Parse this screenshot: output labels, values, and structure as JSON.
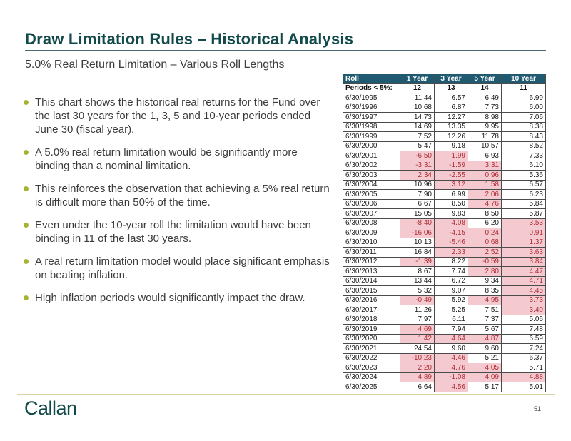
{
  "slide": {
    "title": "Draw Limitation Rules – Historical Analysis",
    "subtitle": "5.0% Real Return Limitation – Various Roll Lengths",
    "logo_text": "Callan",
    "page_number": "51"
  },
  "bullets": [
    "This chart shows the historical real returns for the Fund over the last 30 years for the 1, 3, 5 and 10-year periods ended June 30 (fiscal year).",
    "A 5.0% real return limitation would be significantly more binding than a nominal limitation.",
    "This reinforces the observation that achieving a 5% real return is difficult more than 50% of the time.",
    "Even under the 10-year roll the limitation would have been binding in 11 of the last 30 years.",
    "A real return limitation model would place significant emphasis on beating inflation.",
    "High inflation periods would significantly impact the draw."
  ],
  "table": {
    "header": [
      "Roll",
      "1 Year",
      "3 Year",
      "5 Year",
      "10 Year"
    ],
    "summary_row": {
      "label": "Periods < 5%:",
      "values": [
        "12",
        "13",
        "14",
        "11"
      ]
    },
    "highlight_threshold": 5.0,
    "rows": [
      {
        "date": "6/30/1995",
        "values": [
          "11.44",
          "6.57",
          "6.49",
          "6.99"
        ]
      },
      {
        "date": "6/30/1996",
        "values": [
          "10.68",
          "6.87",
          "7.73",
          "6.00"
        ]
      },
      {
        "date": "6/30/1997",
        "values": [
          "14.73",
          "12.27",
          "8.98",
          "7.06"
        ]
      },
      {
        "date": "6/30/1998",
        "values": [
          "14.69",
          "13.35",
          "9.95",
          "8.38"
        ]
      },
      {
        "date": "6/30/1999",
        "values": [
          "7.52",
          "12.26",
          "11.78",
          "8.43"
        ]
      },
      {
        "date": "6/30/2000",
        "values": [
          "5.47",
          "9.18",
          "10.57",
          "8.52"
        ]
      },
      {
        "date": "6/30/2001",
        "values": [
          "-6.50",
          "1.99",
          "6.93",
          "7.33"
        ]
      },
      {
        "date": "6/30/2002",
        "values": [
          "-3.31",
          "-1.59",
          "3.31",
          "6.10"
        ]
      },
      {
        "date": "6/30/2003",
        "values": [
          "2.34",
          "-2.55",
          "0.96",
          "5.36"
        ]
      },
      {
        "date": "6/30/2004",
        "values": [
          "10.96",
          "3.12",
          "1.58",
          "6.57"
        ]
      },
      {
        "date": "6/30/2005",
        "values": [
          "7.90",
          "6.99",
          "2.06",
          "6.23"
        ]
      },
      {
        "date": "6/30/2006",
        "values": [
          "6.67",
          "8.50",
          "4.76",
          "5.84"
        ]
      },
      {
        "date": "6/30/2007",
        "values": [
          "15.05",
          "9.83",
          "8.50",
          "5.87"
        ]
      },
      {
        "date": "6/30/2008",
        "values": [
          "-8.40",
          "4.08",
          "6.20",
          "3.53"
        ]
      },
      {
        "date": "6/30/2009",
        "values": [
          "-16.06",
          "-4.15",
          "0.24",
          "0.91"
        ]
      },
      {
        "date": "6/30/2010",
        "values": [
          "10.13",
          "-5.46",
          "0.68",
          "1.37"
        ]
      },
      {
        "date": "6/30/2011",
        "values": [
          "16.84",
          "2.33",
          "2.52",
          "3.63"
        ]
      },
      {
        "date": "6/30/2012",
        "values": [
          "-1.39",
          "8.22",
          "-0.59",
          "3.84"
        ]
      },
      {
        "date": "6/30/2013",
        "values": [
          "8.67",
          "7.74",
          "2.80",
          "4.47"
        ]
      },
      {
        "date": "6/30/2014",
        "values": [
          "13.44",
          "6.72",
          "9.34",
          "4.71"
        ]
      },
      {
        "date": "6/30/2015",
        "values": [
          "5.32",
          "9.07",
          "8.35",
          "4.45"
        ]
      },
      {
        "date": "6/30/2016",
        "values": [
          "-0.49",
          "5.92",
          "4.95",
          "3.73"
        ]
      },
      {
        "date": "6/30/2017",
        "values": [
          "11.26",
          "5.25",
          "7.51",
          "3.40"
        ]
      },
      {
        "date": "6/30/2018",
        "values": [
          "7.97",
          "6.11",
          "7.37",
          "5.06"
        ]
      },
      {
        "date": "6/30/2019",
        "values": [
          "4.69",
          "7.94",
          "5.67",
          "7.48"
        ]
      },
      {
        "date": "6/30/2020",
        "values": [
          "1.42",
          "4.64",
          "4.87",
          "6.59"
        ]
      },
      {
        "date": "6/30/2021",
        "values": [
          "24.54",
          "9.60",
          "9.60",
          "7.24"
        ]
      },
      {
        "date": "6/30/2022",
        "values": [
          "-10.23",
          "4.46",
          "5.21",
          "6.37"
        ]
      },
      {
        "date": "6/30/2023",
        "values": [
          "2.20",
          "4.76",
          "4.05",
          "5.71"
        ]
      },
      {
        "date": "6/30/2024",
        "values": [
          "4.89",
          "-1.08",
          "4.09",
          "4.88"
        ]
      },
      {
        "date": "6/30/2025",
        "values": [
          "6.64",
          "4.56",
          "5.17",
          "5.01"
        ]
      }
    ],
    "colors": {
      "header_bg": "#1f5a70",
      "header_text": "#ffffff",
      "highlight_bg": "#f5c9d0",
      "highlight_text": "#b02f37"
    }
  },
  "theme": {
    "title_color": "#12494a",
    "bullet_dot_color": "#a8b431",
    "footer_rule_color": "#d9d3a6"
  }
}
